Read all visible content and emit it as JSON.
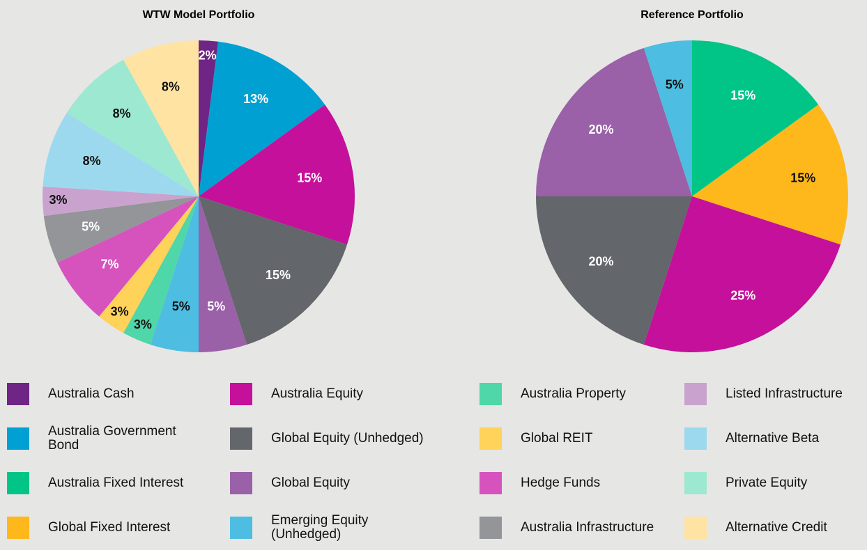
{
  "chart_data": [
    {
      "type": "pie",
      "title": "WTW Model Portfolio",
      "categories": [
        "Australia Cash",
        "Australia Government Bond",
        "Australia Equity",
        "Global Equity (Unhedged)",
        "Global Equity",
        "Emerging Equity (Unhedged)",
        "Australia Property",
        "Global REIT",
        "Hedge Funds",
        "Australia Infrastructure",
        "Listed Infrastructure",
        "Alternative Beta",
        "Private Equity",
        "Alternative Credit"
      ],
      "values": [
        2,
        13,
        15,
        15,
        5,
        5,
        3,
        3,
        7,
        5,
        3,
        8,
        8,
        8
      ],
      "value_labels": [
        "2%",
        "13%",
        "15%",
        "15%",
        "5%",
        "5%",
        "3%",
        "3%",
        "7%",
        "5%",
        "3%",
        "8%",
        "8%",
        "8%"
      ],
      "colors": [
        "#6e2585",
        "#00a0d2",
        "#c4109a",
        "#63666a",
        "#9a60a8",
        "#4dbde1",
        "#4fd6a9",
        "#ffd25a",
        "#d653be",
        "#939598",
        "#c9a3cd",
        "#9dd9ee",
        "#9de8d0",
        "#ffe3a3"
      ]
    },
    {
      "type": "pie",
      "title": "Reference Portfolio",
      "categories": [
        "Australia Fixed Interest",
        "Global Fixed Interest",
        "Australia Equity",
        "Global Equity (Unhedged)",
        "Global Equity",
        "Emerging Equity (Unhedged)"
      ],
      "values": [
        15,
        15,
        25,
        20,
        20,
        5
      ],
      "value_labels": [
        "15%",
        "15%",
        "25%",
        "20%",
        "20%",
        "5%"
      ],
      "colors": [
        "#00c587",
        "#ffb81c",
        "#c4109a",
        "#63666a",
        "#9a60a8",
        "#4dbde1"
      ]
    }
  ],
  "legend": [
    {
      "name": "Australia Cash",
      "color": "#6e2585"
    },
    {
      "name": "Australia Government Bond",
      "color": "#00a0d2"
    },
    {
      "name": "Australia Fixed Interest",
      "color": "#00c587"
    },
    {
      "name": "Global Fixed Interest",
      "color": "#ffb81c"
    },
    {
      "name": "Australia Equity",
      "color": "#c4109a"
    },
    {
      "name": "Global Equity (Unhedged)",
      "color": "#63666a"
    },
    {
      "name": "Global Equity",
      "color": "#9a60a8"
    },
    {
      "name": "Emerging Equity (Unhedged)",
      "color": "#4dbde1"
    },
    {
      "name": "Australia Property",
      "color": "#4fd6a9"
    },
    {
      "name": "Global REIT",
      "color": "#ffd25a"
    },
    {
      "name": "Hedge Funds",
      "color": "#d653be"
    },
    {
      "name": "Australia Infrastructure",
      "color": "#939598"
    },
    {
      "name": "Listed Infrastructure",
      "color": "#c9a3cd"
    },
    {
      "name": "Alternative Beta",
      "color": "#9dd9ee"
    },
    {
      "name": "Private Equity",
      "color": "#9de8d0"
    },
    {
      "name": "Alternative Credit",
      "color": "#ffe3a3"
    }
  ]
}
